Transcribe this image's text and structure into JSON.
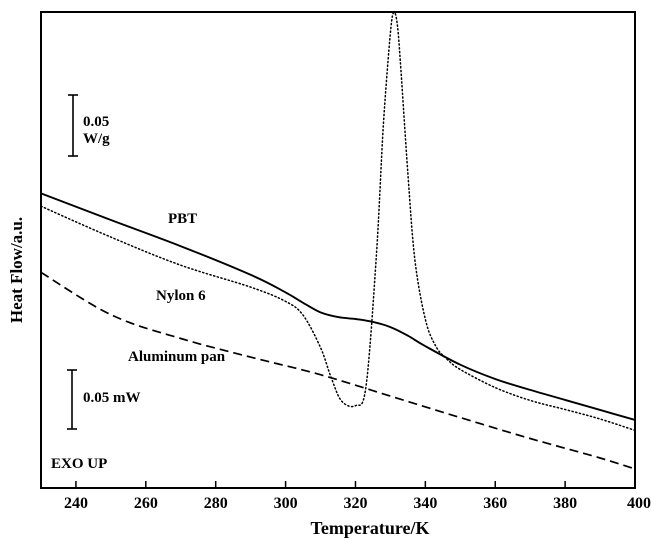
{
  "chart_data": {
    "type": "line",
    "title": "",
    "xlabel": "Temperature/K",
    "ylabel": "Heat Flow/a.u.",
    "xlim": [
      230,
      400
    ],
    "ylim": [
      0,
      100
    ],
    "y_units": "arbitrary",
    "x_ticks": [
      240,
      260,
      280,
      300,
      320,
      340,
      360,
      380,
      400
    ],
    "x_tick_labels": [
      "240",
      "260",
      "280",
      "300",
      "320",
      "340",
      "360",
      "380",
      "400"
    ],
    "grid": false,
    "series": [
      {
        "name": "PBT",
        "style": "solid",
        "color": "#000000",
        "x": [
          230,
          250,
          270,
          290,
          300,
          305,
          310,
          315,
          320,
          325,
          330,
          335,
          340,
          350,
          360,
          370,
          380,
          390,
          400
        ],
        "y": [
          61.9,
          56.3,
          50.8,
          44.8,
          41.1,
          38.9,
          36.9,
          35.9,
          35.5,
          34.9,
          33.8,
          32.0,
          29.8,
          25.9,
          22.9,
          20.6,
          18.5,
          16.4,
          14.3
        ]
      },
      {
        "name": "Nylon 6",
        "style": "dotted",
        "color": "#000000",
        "x": [
          230,
          250,
          270,
          290,
          300,
          305,
          310,
          313,
          316,
          320,
          323,
          326,
          328,
          330,
          331,
          332,
          333,
          335,
          337,
          340,
          343,
          346,
          350,
          360,
          370,
          380,
          390,
          400
        ],
        "y": [
          59.2,
          52.7,
          46.8,
          42.2,
          39.2,
          36.3,
          29.5,
          23.3,
          18.3,
          17.3,
          21.3,
          48.9,
          76.4,
          95.6,
          99.9,
          97.2,
          87.9,
          66.0,
          47.9,
          35.4,
          29.8,
          27.2,
          24.9,
          21.1,
          18.4,
          16.5,
          14.5,
          12.1
        ]
      },
      {
        "name": "Aluminum pan",
        "style": "dashed",
        "color": "#000000",
        "x": [
          230,
          250,
          270,
          290,
          310,
          330,
          350,
          370,
          390,
          400
        ],
        "y": [
          45.3,
          36.4,
          31.4,
          27.5,
          23.8,
          19.3,
          14.8,
          10.4,
          6.3,
          4.0
        ]
      }
    ],
    "annotations": {
      "scale_bar_top": "0.05\nW/g",
      "scale_bar_top_line1": "0.05",
      "scale_bar_top_line2": "W/g",
      "scale_bar_bottom": "0.05 mW",
      "exo": "EXO UP"
    },
    "series_labels": {
      "pbt": "PBT",
      "nylon": "Nylon 6",
      "pan": "Aluminum pan"
    }
  }
}
